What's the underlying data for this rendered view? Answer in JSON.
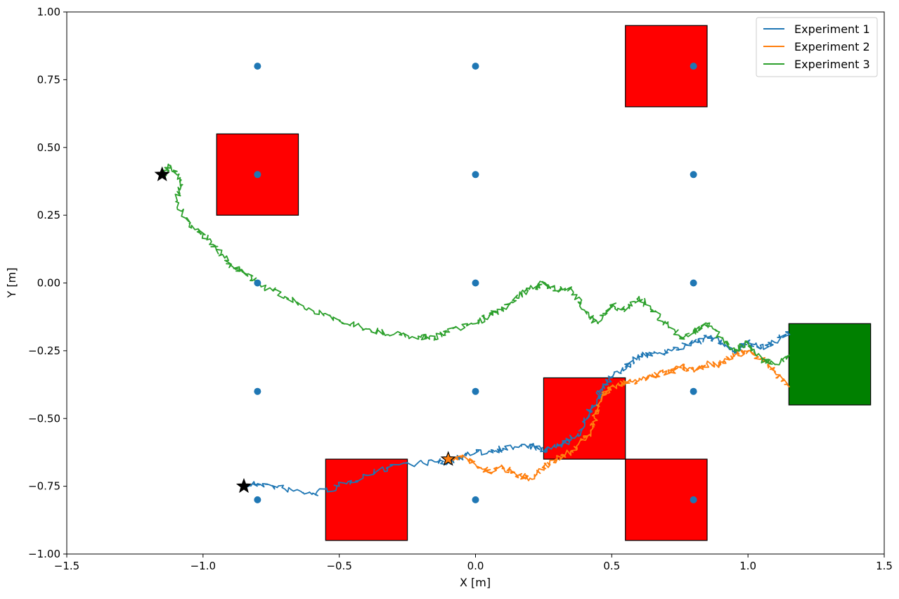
{
  "chart_data": {
    "type": "line",
    "xlabel": "X [m]",
    "ylabel": "Y [m]",
    "xlim": [
      -1.5,
      1.5
    ],
    "ylim": [
      -1.0,
      1.0
    ],
    "grid": false,
    "legend_position": "top-right",
    "x_ticks": [
      {
        "value": -1.5,
        "label": "−1.5"
      },
      {
        "value": -1.0,
        "label": "−1.0"
      },
      {
        "value": -0.5,
        "label": "−0.5"
      },
      {
        "value": 0.0,
        "label": "0.0"
      },
      {
        "value": 0.5,
        "label": "0.5"
      },
      {
        "value": 1.0,
        "label": "1.0"
      },
      {
        "value": 1.5,
        "label": "1.5"
      }
    ],
    "y_ticks": [
      {
        "value": -1.0,
        "label": "−1.00"
      },
      {
        "value": -0.75,
        "label": "−0.75"
      },
      {
        "value": -0.5,
        "label": "−0.50"
      },
      {
        "value": -0.25,
        "label": "−0.25"
      },
      {
        "value": 0.0,
        "label": "0.00"
      },
      {
        "value": 0.25,
        "label": "0.25"
      },
      {
        "value": 0.5,
        "label": "0.50"
      },
      {
        "value": 0.75,
        "label": "0.75"
      },
      {
        "value": 1.0,
        "label": "1.00"
      }
    ],
    "obstacles": [
      {
        "x": [
          -0.95,
          -0.65
        ],
        "y": [
          0.25,
          0.55
        ],
        "color": "#ff0000"
      },
      {
        "x": [
          0.55,
          0.85
        ],
        "y": [
          0.65,
          0.95
        ],
        "color": "#ff0000"
      },
      {
        "x": [
          0.25,
          0.55
        ],
        "y": [
          -0.65,
          -0.35
        ],
        "color": "#ff0000"
      },
      {
        "x": [
          -0.55,
          -0.25
        ],
        "y": [
          -0.95,
          -0.65
        ],
        "color": "#ff0000"
      },
      {
        "x": [
          0.55,
          0.85
        ],
        "y": [
          -0.95,
          -0.65
        ],
        "color": "#ff0000"
      }
    ],
    "goal": {
      "x": [
        1.15,
        1.45
      ],
      "y": [
        -0.45,
        -0.15
      ],
      "color": "#008000"
    },
    "waypoints": {
      "color": "#1f77b4",
      "points": [
        [
          -0.8,
          0.8
        ],
        [
          0.0,
          0.8
        ],
        [
          0.8,
          0.8
        ],
        [
          -0.8,
          0.4
        ],
        [
          0.0,
          0.4
        ],
        [
          0.8,
          0.4
        ],
        [
          -0.8,
          0.0
        ],
        [
          0.0,
          0.0
        ],
        [
          0.8,
          0.0
        ],
        [
          -0.8,
          -0.4
        ],
        [
          0.0,
          -0.4
        ],
        [
          0.8,
          -0.4
        ],
        [
          -0.8,
          -0.8
        ],
        [
          0.0,
          -0.8
        ],
        [
          0.8,
          -0.8
        ]
      ]
    },
    "series": [
      {
        "name": "Experiment 1",
        "color": "#1f77b4",
        "start": [
          -0.85,
          -0.75
        ],
        "x": [
          -0.85,
          -0.8,
          -0.7,
          -0.6,
          -0.5,
          -0.4,
          -0.3,
          -0.15,
          -0.1,
          -0.05,
          0.05,
          0.1,
          0.2,
          0.25,
          0.3,
          0.35,
          0.4,
          0.42,
          0.45,
          0.47,
          0.5,
          0.55,
          0.6,
          0.65,
          0.72,
          0.8,
          0.85,
          0.9,
          0.95,
          1.0,
          1.05,
          1.1,
          1.15
        ],
        "y": [
          -0.75,
          -0.74,
          -0.76,
          -0.78,
          -0.75,
          -0.71,
          -0.67,
          -0.66,
          -0.66,
          -0.64,
          -0.62,
          -0.61,
          -0.6,
          -0.62,
          -0.6,
          -0.58,
          -0.53,
          -0.47,
          -0.42,
          -0.38,
          -0.35,
          -0.31,
          -0.27,
          -0.26,
          -0.25,
          -0.22,
          -0.2,
          -0.22,
          -0.25,
          -0.22,
          -0.24,
          -0.22,
          -0.18
        ]
      },
      {
        "name": "Experiment 2",
        "color": "#ff7f0e",
        "start": [
          -0.1,
          -0.65
        ],
        "x": [
          -0.1,
          -0.05,
          0.0,
          0.05,
          0.1,
          0.15,
          0.2,
          0.25,
          0.3,
          0.35,
          0.4,
          0.43,
          0.45,
          0.47,
          0.5,
          0.55,
          0.6,
          0.65,
          0.7,
          0.75,
          0.8,
          0.85,
          0.9,
          0.95,
          1.0,
          1.05,
          1.1,
          1.15
        ],
        "y": [
          -0.65,
          -0.64,
          -0.67,
          -0.7,
          -0.68,
          -0.71,
          -0.72,
          -0.68,
          -0.65,
          -0.62,
          -0.58,
          -0.52,
          -0.46,
          -0.41,
          -0.38,
          -0.37,
          -0.36,
          -0.34,
          -0.33,
          -0.31,
          -0.32,
          -0.3,
          -0.3,
          -0.27,
          -0.25,
          -0.28,
          -0.33,
          -0.38
        ]
      },
      {
        "name": "Experiment 3",
        "color": "#2ca02c",
        "start": [
          -1.15,
          0.4
        ],
        "x": [
          -1.15,
          -1.12,
          -1.08,
          -1.1,
          -1.05,
          -1.0,
          -0.95,
          -0.9,
          -0.85,
          -0.8,
          -0.7,
          -0.6,
          -0.5,
          -0.4,
          -0.3,
          -0.2,
          -0.15,
          -0.1,
          0.0,
          0.05,
          0.1,
          0.15,
          0.2,
          0.25,
          0.3,
          0.35,
          0.4,
          0.45,
          0.5,
          0.55,
          0.6,
          0.65,
          0.7,
          0.75,
          0.8,
          0.85,
          0.9,
          0.95,
          1.0,
          1.05,
          1.1,
          1.15
        ],
        "y": [
          0.4,
          0.43,
          0.38,
          0.3,
          0.22,
          0.18,
          0.12,
          0.07,
          0.04,
          0.0,
          -0.05,
          -0.1,
          -0.14,
          -0.17,
          -0.19,
          -0.2,
          -0.2,
          -0.18,
          -0.15,
          -0.12,
          -0.1,
          -0.05,
          -0.02,
          0.0,
          -0.03,
          -0.02,
          -0.1,
          -0.15,
          -0.08,
          -0.1,
          -0.05,
          -0.1,
          -0.15,
          -0.2,
          -0.18,
          -0.15,
          -0.2,
          -0.25,
          -0.22,
          -0.28,
          -0.3,
          -0.27
        ]
      }
    ]
  }
}
